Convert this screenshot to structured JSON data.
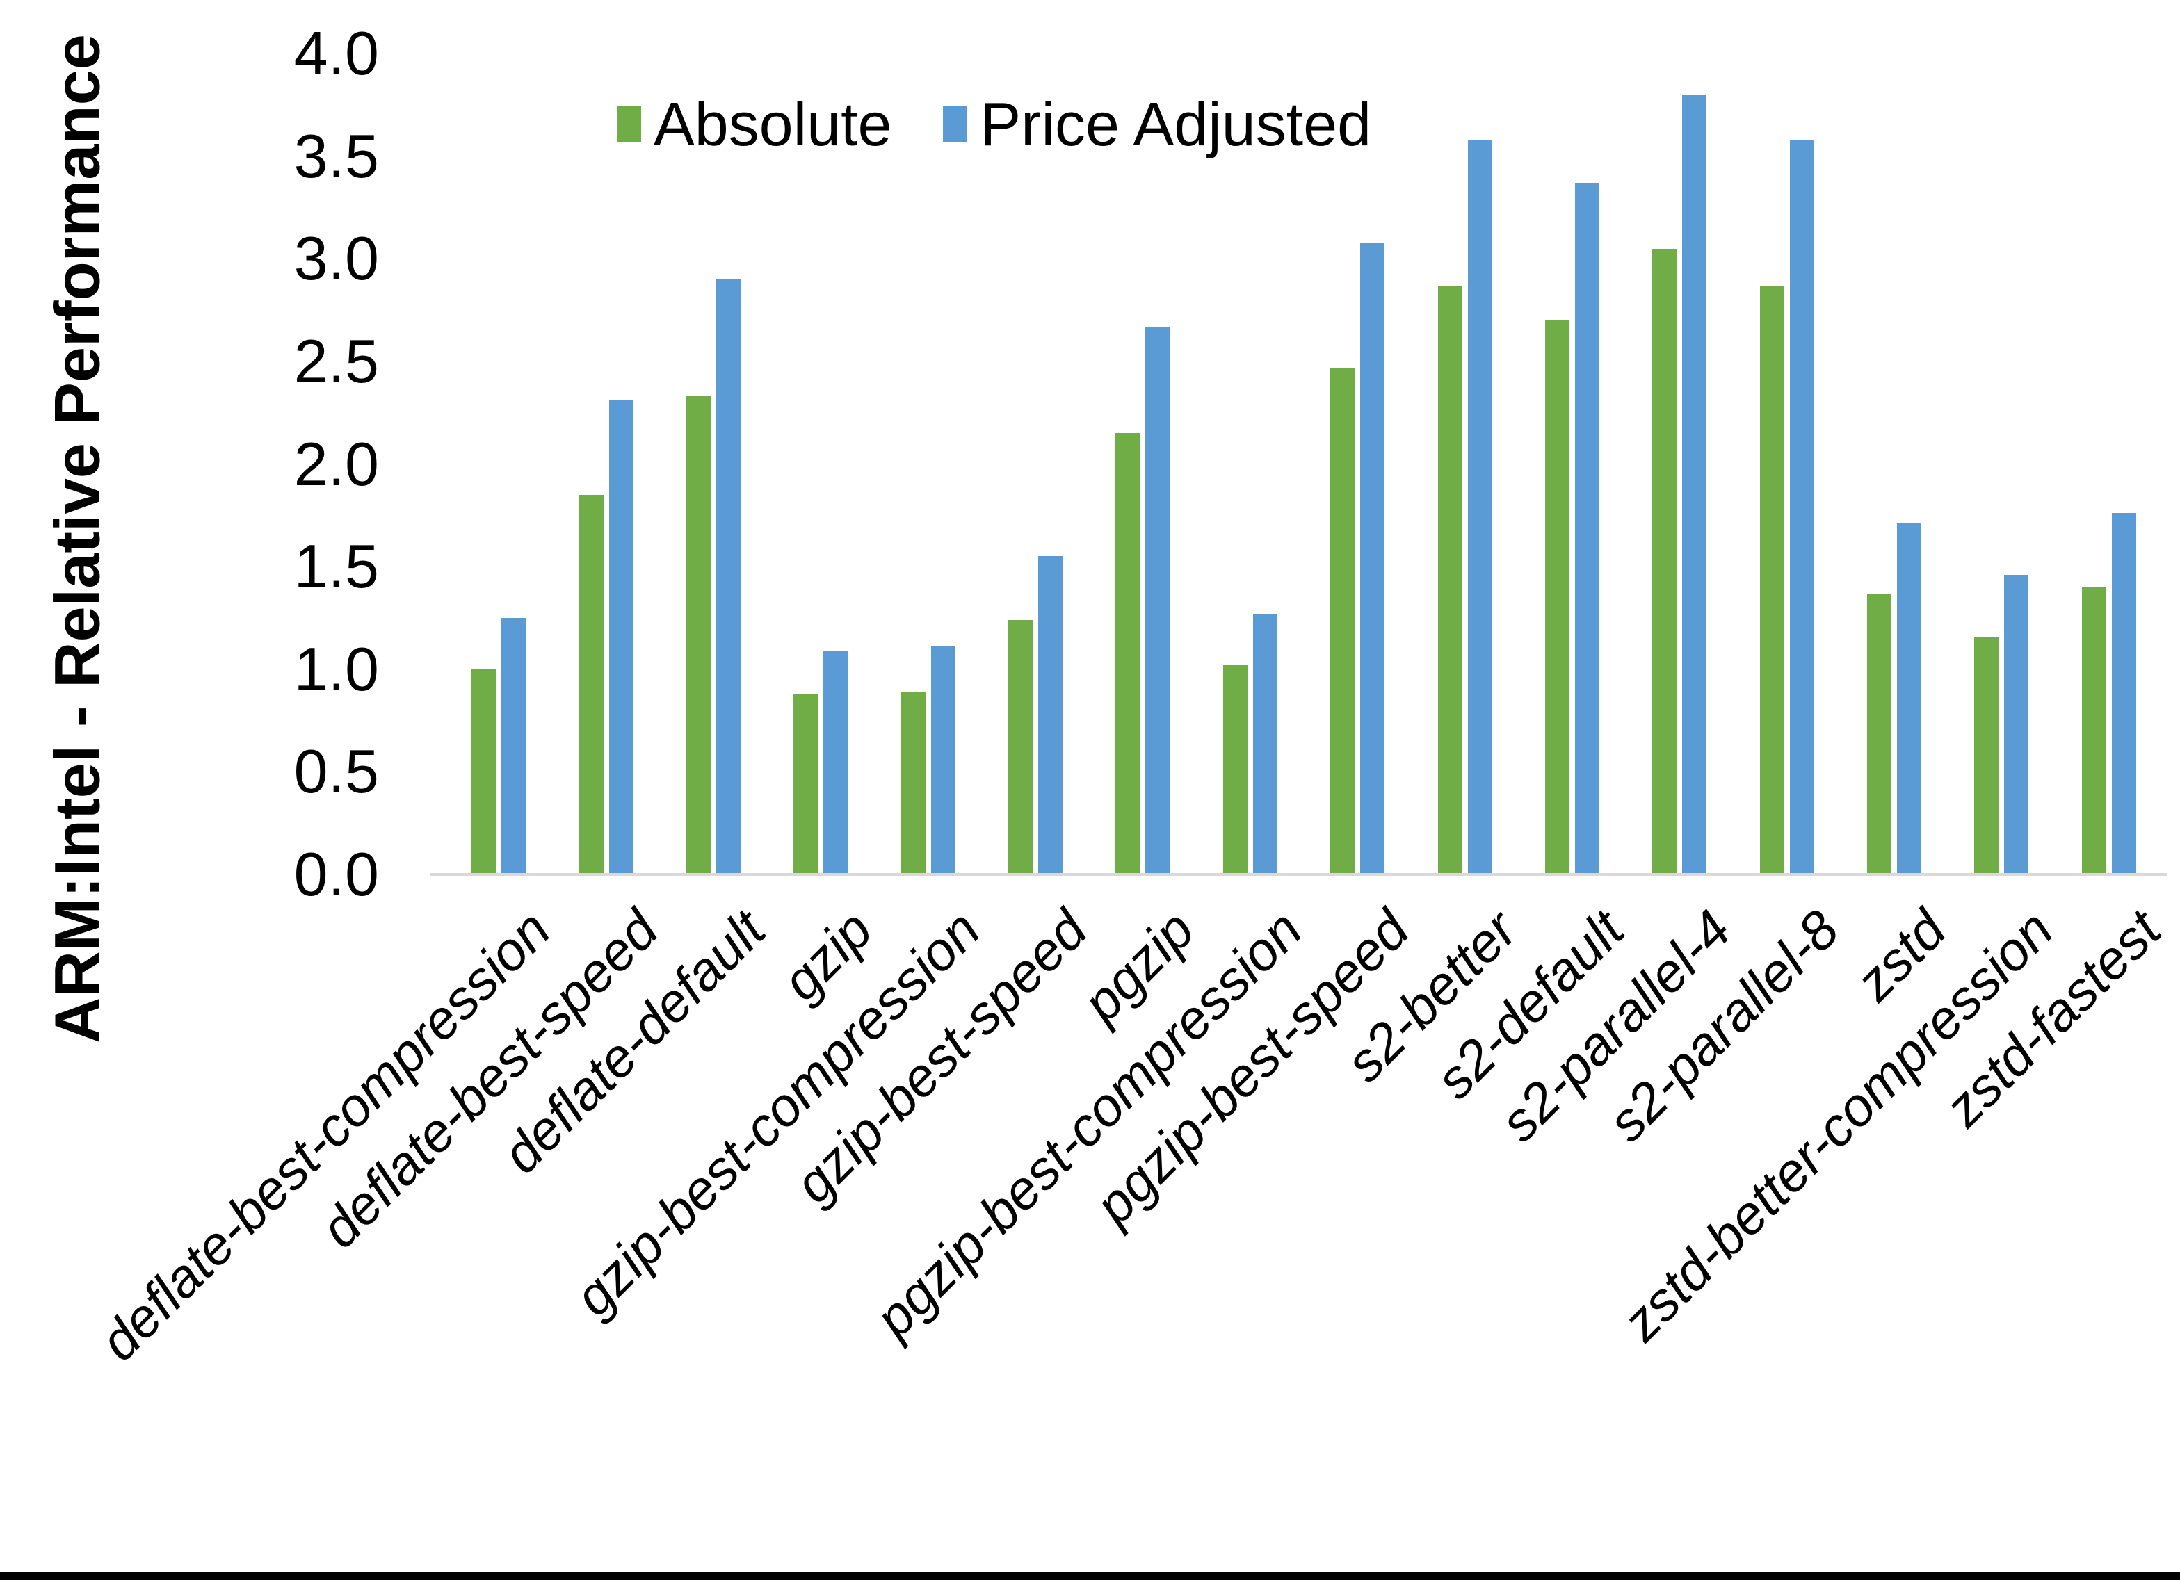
{
  "chart_data": {
    "type": "bar",
    "title": "",
    "ylabel": "ARM:Intel - Relative Performance",
    "xlabel": "",
    "ylim": [
      0.0,
      4.0
    ],
    "ytick_step": 0.5,
    "yticks": [
      "4.0",
      "3.5",
      "3.0",
      "2.5",
      "2.0",
      "1.5",
      "1.0",
      "0.5",
      "0.0"
    ],
    "grid": "off",
    "legend_position": "top-center",
    "categories": [
      "deflate-best-compression",
      "deflate-best-speed",
      "deflate-default",
      "gzip",
      "gzip-best-compression",
      "gzip-best-speed",
      "pgzip",
      "pgzip-best-compression",
      "pgzip-best-speed",
      "s2-better",
      "s2-default",
      "s2-parallel-4",
      "s2-parallel-8",
      "zstd",
      "zstd-better-compression",
      "zstd-fastest"
    ],
    "series": [
      {
        "name": "Absolute",
        "color": "#70AD47",
        "values": [
          1.0,
          1.85,
          2.33,
          0.88,
          0.89,
          1.24,
          2.15,
          1.02,
          2.47,
          2.87,
          2.7,
          3.05,
          2.87,
          1.37,
          1.16,
          1.4
        ]
      },
      {
        "name": "Price Adjusted",
        "color": "#5B9BD5",
        "values": [
          1.25,
          2.31,
          2.9,
          1.09,
          1.11,
          1.55,
          2.67,
          1.27,
          3.08,
          3.58,
          3.37,
          3.8,
          3.58,
          1.71,
          1.46,
          1.76
        ]
      }
    ],
    "axis_line_color": "#D9D9D9",
    "background_color": "#FFFFFF",
    "border_bottom_color": "#000000"
  }
}
